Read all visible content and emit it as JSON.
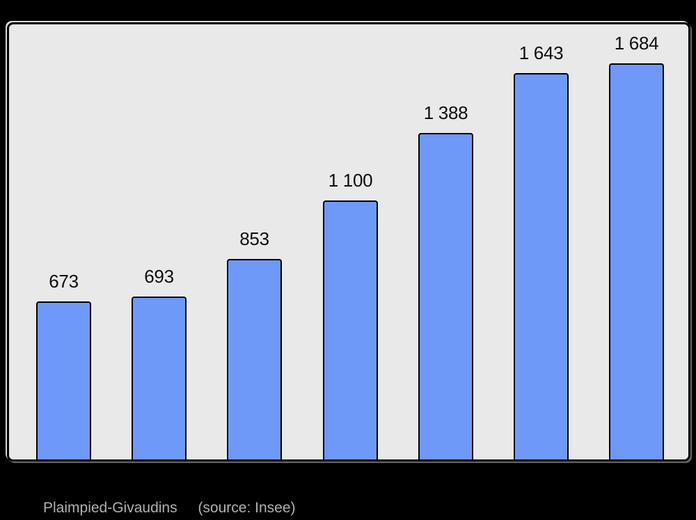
{
  "page": {
    "background": "#000000"
  },
  "chart_data": {
    "type": "bar",
    "title": "",
    "xlabel": "",
    "ylabel": "",
    "values": [
      673,
      693,
      853,
      1100,
      1388,
      1643,
      1684
    ],
    "value_labels": [
      "673",
      "693",
      "853",
      "1 100",
      "1 388",
      "1 643",
      "1 684"
    ],
    "ylim": [
      0,
      1850
    ],
    "grid": false,
    "legend": false,
    "x_tick_labels_visible": false,
    "bar_color": "#6f99f8",
    "bar_border_color": "#000000",
    "value_label_color": "#0d0d0d",
    "plot_background": "#e9e9e9"
  },
  "caption": {
    "title": "Plaimpied-Givaudins",
    "source": "(source: Insee)",
    "color": "#b0b0b0"
  }
}
